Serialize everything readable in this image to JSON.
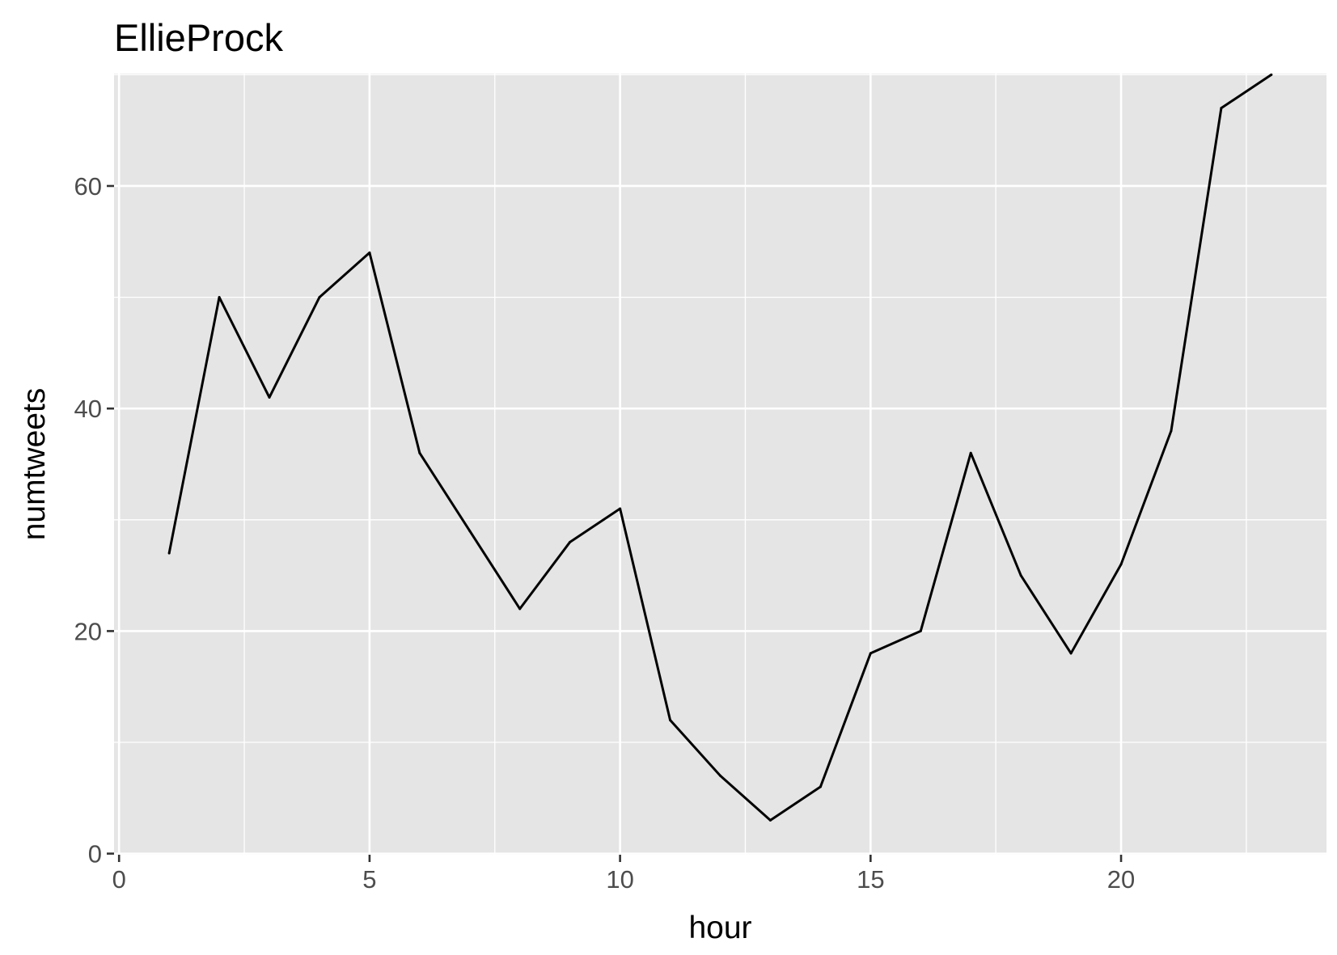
{
  "chart_data": {
    "type": "line",
    "title": "EllieProck",
    "xlabel": "hour",
    "ylabel": "numtweets",
    "x": [
      1,
      2,
      3,
      4,
      5,
      6,
      7,
      8,
      9,
      10,
      11,
      12,
      13,
      14,
      15,
      16,
      17,
      18,
      19,
      20,
      21,
      22,
      23
    ],
    "series": [
      {
        "values": [
          27,
          50,
          41,
          50,
          54,
          36,
          29,
          22,
          28,
          31,
          12,
          7,
          3,
          6,
          18,
          20,
          36,
          25,
          18,
          26,
          38,
          67,
          70
        ]
      }
    ],
    "xlim": [
      -0.1,
      24.1
    ],
    "ylim": [
      -0.1,
      70.1
    ],
    "x_ticks": [
      "0",
      "5",
      "10",
      "15",
      "20"
    ],
    "y_ticks": [
      "0",
      "20",
      "40",
      "60"
    ],
    "grid": true,
    "colors": {
      "panel_background": "#e5e5e5",
      "grid": "#ffffff",
      "line": "#000000",
      "tick_label": "#4d4d4d",
      "axis_ticks": "#333333"
    }
  }
}
